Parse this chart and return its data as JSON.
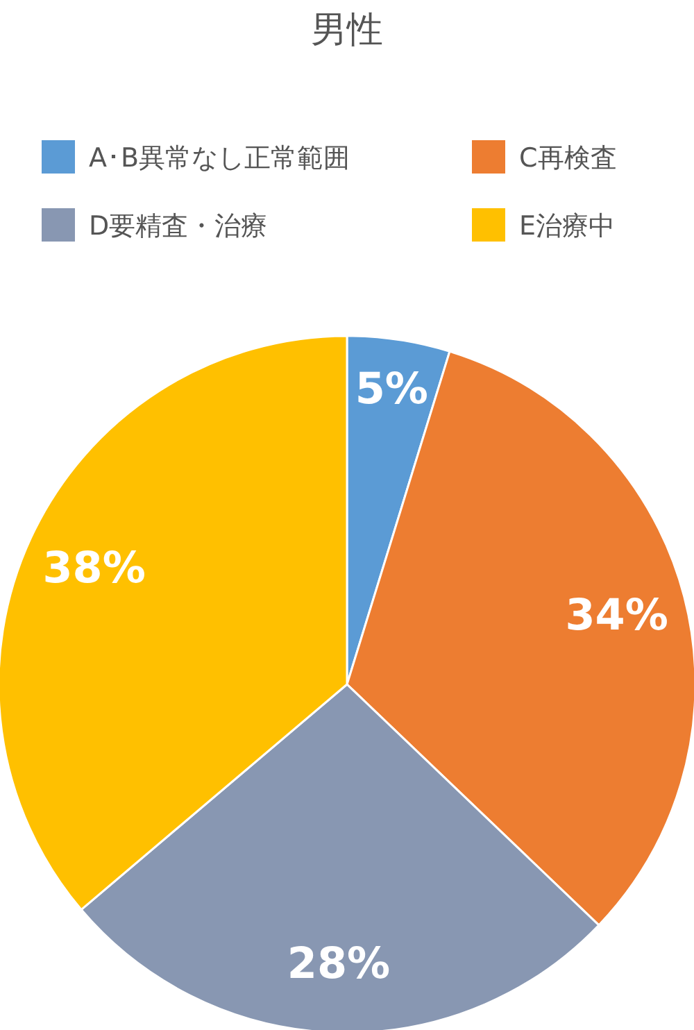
{
  "chart_data": {
    "type": "pie",
    "title": "男性",
    "categories": [
      "A･B異常なし正常範囲",
      "C再検査",
      "D要精査・治療",
      "E治療中"
    ],
    "values": [
      5,
      34,
      28,
      38
    ],
    "colors": [
      "#5b9bd5",
      "#ed7d31",
      "#8897b2",
      "#ffc000"
    ],
    "value_labels": [
      "5%",
      "34%",
      "28%",
      "38%"
    ],
    "legend": "top"
  }
}
